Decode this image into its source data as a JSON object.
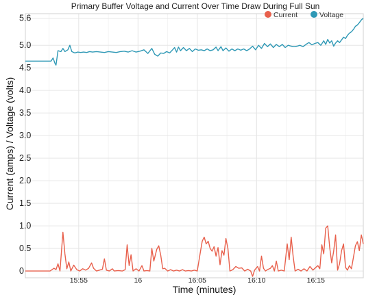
{
  "chart_data": {
    "type": "line",
    "title": "Primary Buffer Voltage and Current Over Time Draw During Full Sun",
    "xlabel": "Time (minutes)",
    "ylabel": "Current (amps) / Voltage (volts)",
    "x_unit": "time of day (HH:MM)",
    "xlim": [
      "15:50:30",
      "16:19:00"
    ],
    "x_ticks": [
      {
        "t": "15:55",
        "label": "15:55"
      },
      {
        "t": "16:00",
        "label": "16"
      },
      {
        "t": "16:05",
        "label": "16:05"
      },
      {
        "t": "16:10",
        "label": "16:10"
      },
      {
        "t": "16:15",
        "label": "16:15"
      }
    ],
    "y_ticks": [
      0,
      0.5,
      1.0,
      1.5,
      2.0,
      2.5,
      3.0,
      3.5,
      4.0,
      4.5,
      5.0,
      5.6
    ],
    "y_tick_labels": [
      "0",
      "0.5",
      "1.0",
      "1.5",
      "2.0",
      "2.5",
      "3.0",
      "3.5",
      "4.0",
      "4.5",
      "5.0",
      "5.6"
    ],
    "ylim": [
      -0.15,
      5.7
    ],
    "grid": true,
    "legend_position": "top-right",
    "series": [
      {
        "name": "Current",
        "color": "#e8604c",
        "points": [
          [
            "15:50:30",
            0.0
          ],
          [
            "15:52:35",
            0.0
          ],
          [
            "15:52:55",
            0.06
          ],
          [
            "15:53:05",
            0.03
          ],
          [
            "15:53:15",
            0.16
          ],
          [
            "15:53:25",
            0.0
          ],
          [
            "15:53:40",
            0.86
          ],
          [
            "15:53:50",
            0.38
          ],
          [
            "15:54:00",
            0.05
          ],
          [
            "15:54:10",
            0.2
          ],
          [
            "15:54:20",
            0.0
          ],
          [
            "15:54:35",
            0.13
          ],
          [
            "15:54:50",
            0.03
          ],
          [
            "15:55:05",
            0.0
          ],
          [
            "15:55:20",
            0.05
          ],
          [
            "15:55:35",
            0.02
          ],
          [
            "15:55:50",
            0.06
          ],
          [
            "15:56:05",
            0.18
          ],
          [
            "15:56:15",
            0.06
          ],
          [
            "15:56:30",
            0.0
          ],
          [
            "15:56:45",
            0.02
          ],
          [
            "15:57:00",
            0.04
          ],
          [
            "15:57:10",
            0.27
          ],
          [
            "15:57:20",
            0.02
          ],
          [
            "15:57:35",
            0.0
          ],
          [
            "15:57:50",
            0.05
          ],
          [
            "15:58:00",
            0.0
          ],
          [
            "15:58:20",
            0.01
          ],
          [
            "15:58:40",
            0.0
          ],
          [
            "15:58:55",
            0.03
          ],
          [
            "15:59:05",
            0.58
          ],
          [
            "15:59:15",
            0.12
          ],
          [
            "15:59:25",
            0.36
          ],
          [
            "15:59:35",
            0.0
          ],
          [
            "15:59:50",
            0.05
          ],
          [
            "16:00:05",
            0.0
          ],
          [
            "16:00:20",
            0.12
          ],
          [
            "16:00:30",
            0.0
          ],
          [
            "16:00:45",
            0.01
          ],
          [
            "16:01:00",
            0.0
          ],
          [
            "16:01:10",
            0.5
          ],
          [
            "16:01:20",
            0.22
          ],
          [
            "16:01:35",
            0.48
          ],
          [
            "16:01:45",
            0.56
          ],
          [
            "16:01:55",
            0.35
          ],
          [
            "16:02:05",
            0.05
          ],
          [
            "16:02:15",
            0.06
          ],
          [
            "16:02:30",
            0.0
          ],
          [
            "16:02:45",
            0.03
          ],
          [
            "16:03:00",
            0.0
          ],
          [
            "16:03:15",
            0.02
          ],
          [
            "16:03:30",
            0.0
          ],
          [
            "16:03:45",
            0.03
          ],
          [
            "16:04:00",
            0.0
          ],
          [
            "16:04:15",
            0.01
          ],
          [
            "16:04:30",
            0.0
          ],
          [
            "16:04:45",
            0.02
          ],
          [
            "16:05:00",
            0.0
          ],
          [
            "16:05:15",
            0.4
          ],
          [
            "16:05:25",
            0.66
          ],
          [
            "16:05:35",
            0.75
          ],
          [
            "16:05:45",
            0.6
          ],
          [
            "16:05:55",
            0.66
          ],
          [
            "16:06:05",
            0.5
          ],
          [
            "16:06:15",
            0.44
          ],
          [
            "16:06:25",
            0.54
          ],
          [
            "16:06:35",
            0.33
          ],
          [
            "16:06:45",
            0.52
          ],
          [
            "16:06:55",
            0.14
          ],
          [
            "16:07:05",
            0.45
          ],
          [
            "16:07:15",
            0.35
          ],
          [
            "16:07:25",
            0.72
          ],
          [
            "16:07:35",
            0.5
          ],
          [
            "16:07:45",
            0.0
          ],
          [
            "16:08:00",
            0.03
          ],
          [
            "16:08:15",
            0.1
          ],
          [
            "16:08:30",
            0.06
          ],
          [
            "16:08:45",
            0.07
          ],
          [
            "16:09:00",
            0.0
          ],
          [
            "16:09:15",
            0.04
          ],
          [
            "16:09:30",
            0.0
          ],
          [
            "16:09:40",
            -0.12
          ],
          [
            "16:09:50",
            0.02
          ],
          [
            "16:10:05",
            0.1
          ],
          [
            "16:10:15",
            0.0
          ],
          [
            "16:10:25",
            0.33
          ],
          [
            "16:10:35",
            0.06
          ],
          [
            "16:10:45",
            0.0
          ],
          [
            "16:10:55",
            0.03
          ],
          [
            "16:11:10",
            0.06
          ],
          [
            "16:11:20",
            0.12
          ],
          [
            "16:11:30",
            0.0
          ],
          [
            "16:11:40",
            0.22
          ],
          [
            "16:11:50",
            0.0
          ],
          [
            "16:12:05",
            0.02
          ],
          [
            "16:12:20",
            0.0
          ],
          [
            "16:12:35",
            0.6
          ],
          [
            "16:12:45",
            0.25
          ],
          [
            "16:12:55",
            0.75
          ],
          [
            "16:13:05",
            0.32
          ],
          [
            "16:13:15",
            0.0
          ],
          [
            "16:13:30",
            0.04
          ],
          [
            "16:13:45",
            0.0
          ],
          [
            "16:14:00",
            0.05
          ],
          [
            "16:14:15",
            0.0
          ],
          [
            "16:14:30",
            0.1
          ],
          [
            "16:14:45",
            0.02
          ],
          [
            "16:15:00",
            0.08
          ],
          [
            "16:15:10",
            0.12
          ],
          [
            "16:15:20",
            0.05
          ],
          [
            "16:15:30",
            0.58
          ],
          [
            "16:15:40",
            0.38
          ],
          [
            "16:15:50",
            0.95
          ],
          [
            "16:16:00",
            1.0
          ],
          [
            "16:16:10",
            0.52
          ],
          [
            "16:16:20",
            0.18
          ],
          [
            "16:16:30",
            0.44
          ],
          [
            "16:16:40",
            0.8
          ],
          [
            "16:16:50",
            0.02
          ],
          [
            "16:17:00",
            0.16
          ],
          [
            "16:17:10",
            0.45
          ],
          [
            "16:17:20",
            0.6
          ],
          [
            "16:17:30",
            0.08
          ],
          [
            "16:17:40",
            0.02
          ],
          [
            "16:17:50",
            0.12
          ],
          [
            "16:18:00",
            0.05
          ],
          [
            "16:18:10",
            0.3
          ],
          [
            "16:18:20",
            0.56
          ],
          [
            "16:18:30",
            0.65
          ],
          [
            "16:18:40",
            0.45
          ],
          [
            "16:18:50",
            0.8
          ],
          [
            "16:18:55",
            0.7
          ],
          [
            "16:19:00",
            0.6
          ]
        ]
      },
      {
        "name": "Voltage",
        "color": "#2e98b5",
        "points": [
          [
            "15:50:30",
            4.65
          ],
          [
            "15:52:40",
            4.65
          ],
          [
            "15:52:50",
            4.72
          ],
          [
            "15:53:00",
            4.6
          ],
          [
            "15:53:05",
            4.56
          ],
          [
            "15:53:15",
            4.88
          ],
          [
            "15:53:30",
            4.86
          ],
          [
            "15:53:40",
            4.93
          ],
          [
            "15:53:50",
            4.86
          ],
          [
            "15:54:05",
            4.9
          ],
          [
            "15:54:15",
            5.0
          ],
          [
            "15:54:25",
            4.86
          ],
          [
            "15:54:40",
            4.83
          ],
          [
            "15:54:55",
            4.85
          ],
          [
            "15:55:10",
            4.84
          ],
          [
            "15:55:25",
            4.85
          ],
          [
            "15:55:40",
            4.84
          ],
          [
            "15:55:55",
            4.86
          ],
          [
            "15:56:10",
            4.85
          ],
          [
            "15:56:30",
            4.86
          ],
          [
            "15:56:50",
            4.85
          ],
          [
            "15:57:10",
            4.84
          ],
          [
            "15:57:30",
            4.86
          ],
          [
            "15:57:50",
            4.85
          ],
          [
            "15:58:10",
            4.84
          ],
          [
            "15:58:30",
            4.86
          ],
          [
            "15:58:50",
            4.87
          ],
          [
            "15:59:10",
            4.85
          ],
          [
            "15:59:30",
            4.88
          ],
          [
            "15:59:50",
            4.85
          ],
          [
            "16:00:10",
            4.87
          ],
          [
            "16:00:30",
            4.9
          ],
          [
            "16:00:50",
            4.82
          ],
          [
            "16:01:10",
            4.93
          ],
          [
            "16:01:25",
            4.8
          ],
          [
            "16:01:40",
            4.76
          ],
          [
            "16:01:55",
            4.83
          ],
          [
            "16:02:10",
            4.82
          ],
          [
            "16:02:25",
            4.86
          ],
          [
            "16:02:40",
            4.83
          ],
          [
            "16:02:55",
            4.9
          ],
          [
            "16:03:05",
            4.95
          ],
          [
            "16:03:15",
            4.85
          ],
          [
            "16:03:25",
            4.96
          ],
          [
            "16:03:35",
            4.88
          ],
          [
            "16:03:50",
            4.95
          ],
          [
            "16:04:05",
            4.88
          ],
          [
            "16:04:20",
            4.93
          ],
          [
            "16:04:35",
            4.86
          ],
          [
            "16:04:50",
            4.92
          ],
          [
            "16:05:05",
            4.89
          ],
          [
            "16:05:20",
            4.9
          ],
          [
            "16:05:35",
            4.88
          ],
          [
            "16:05:50",
            4.92
          ],
          [
            "16:06:05",
            4.88
          ],
          [
            "16:06:20",
            4.9
          ],
          [
            "16:06:35",
            4.96
          ],
          [
            "16:06:45",
            4.88
          ],
          [
            "16:07:00",
            4.97
          ],
          [
            "16:07:10",
            4.88
          ],
          [
            "16:07:25",
            4.94
          ],
          [
            "16:07:40",
            4.87
          ],
          [
            "16:07:55",
            4.92
          ],
          [
            "16:08:10",
            4.88
          ],
          [
            "16:08:25",
            4.92
          ],
          [
            "16:08:40",
            4.89
          ],
          [
            "16:08:55",
            4.92
          ],
          [
            "16:09:10",
            4.88
          ],
          [
            "16:09:25",
            4.92
          ],
          [
            "16:09:40",
            4.98
          ],
          [
            "16:09:55",
            4.9
          ],
          [
            "16:10:10",
            5.0
          ],
          [
            "16:10:25",
            4.93
          ],
          [
            "16:10:40",
            5.04
          ],
          [
            "16:10:55",
            4.97
          ],
          [
            "16:11:10",
            5.03
          ],
          [
            "16:11:25",
            4.95
          ],
          [
            "16:11:40",
            5.02
          ],
          [
            "16:11:55",
            4.97
          ],
          [
            "16:12:10",
            5.02
          ],
          [
            "16:12:25",
            4.95
          ],
          [
            "16:12:40",
            5.0
          ],
          [
            "16:12:55",
            4.98
          ],
          [
            "16:13:10",
            4.97
          ],
          [
            "16:13:25",
            4.98
          ],
          [
            "16:13:40",
            5.0
          ],
          [
            "16:13:55",
            4.97
          ],
          [
            "16:14:10",
            5.02
          ],
          [
            "16:14:25",
            5.06
          ],
          [
            "16:14:40",
            5.01
          ],
          [
            "16:14:55",
            5.04
          ],
          [
            "16:15:10",
            5.06
          ],
          [
            "16:15:25",
            5.0
          ],
          [
            "16:15:40",
            5.1
          ],
          [
            "16:15:50",
            5.02
          ],
          [
            "16:16:00",
            5.13
          ],
          [
            "16:16:10",
            5.05
          ],
          [
            "16:16:20",
            5.1
          ],
          [
            "16:16:30",
            4.98
          ],
          [
            "16:16:40",
            5.05
          ],
          [
            "16:16:50",
            5.1
          ],
          [
            "16:17:00",
            5.06
          ],
          [
            "16:17:10",
            5.12
          ],
          [
            "16:17:20",
            5.18
          ],
          [
            "16:17:30",
            5.15
          ],
          [
            "16:17:40",
            5.22
          ],
          [
            "16:17:50",
            5.27
          ],
          [
            "16:18:00",
            5.3
          ],
          [
            "16:18:10",
            5.35
          ],
          [
            "16:18:20",
            5.42
          ],
          [
            "16:18:30",
            5.45
          ],
          [
            "16:18:40",
            5.5
          ],
          [
            "16:18:50",
            5.56
          ],
          [
            "16:19:00",
            5.6
          ]
        ]
      }
    ]
  }
}
